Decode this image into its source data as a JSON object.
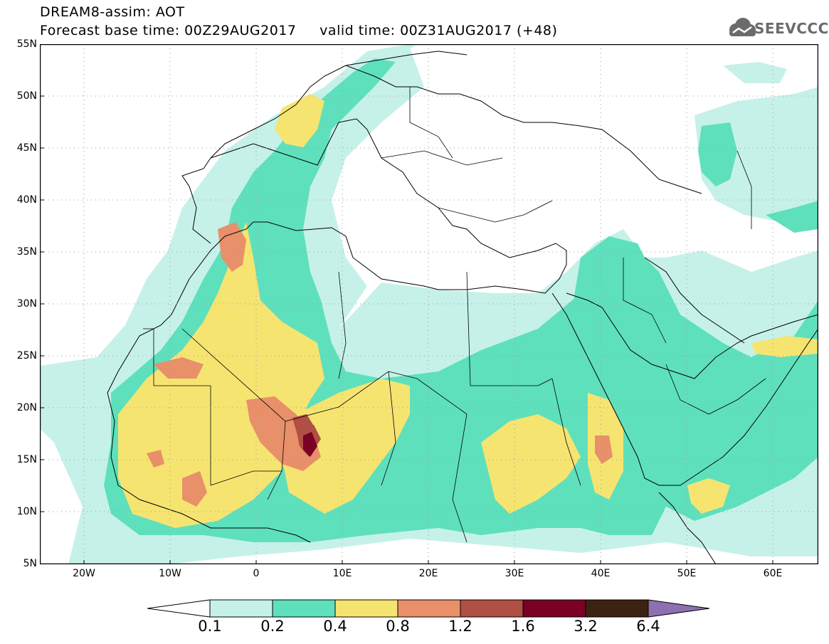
{
  "header": {
    "title_line1": "DREAM8-assim: AOT",
    "title_line2": "Forecast base time: 00Z29AUG2017     valid time: 00Z31AUG2017 (+48)",
    "logo_text": "SEEVCCC"
  },
  "map": {
    "variable": "AOT",
    "lat_labels": [
      "55N",
      "50N",
      "45N",
      "40N",
      "35N",
      "30N",
      "25N",
      "20N",
      "15N",
      "10N",
      "5N"
    ],
    "lon_labels": [
      "20W",
      "10W",
      "0",
      "10E",
      "20E",
      "30E",
      "40E",
      "50E",
      "60E"
    ],
    "lon_range": [
      -25,
      65
    ],
    "lat_range": [
      5,
      55
    ],
    "colors": {
      "c01": "#c6f1e9",
      "c02": "#5ee0bd",
      "c04": "#f6e471",
      "c08": "#e8906a",
      "c12": "#b04f43",
      "c16": "#7a0026",
      "c32": "#3c2210",
      "c64": "#8e70b0"
    }
  },
  "colorbar": {
    "labels": [
      "0.1",
      "0.2",
      "0.4",
      "0.8",
      "1.2",
      "1.6",
      "3.2",
      "6.4"
    ],
    "colors": [
      "#c6f1e9",
      "#5ee0bd",
      "#f6e471",
      "#e8906a",
      "#b04f43",
      "#7a0026",
      "#3c2210"
    ],
    "under_color": "#ffffff",
    "over_color": "#8e70b0"
  }
}
